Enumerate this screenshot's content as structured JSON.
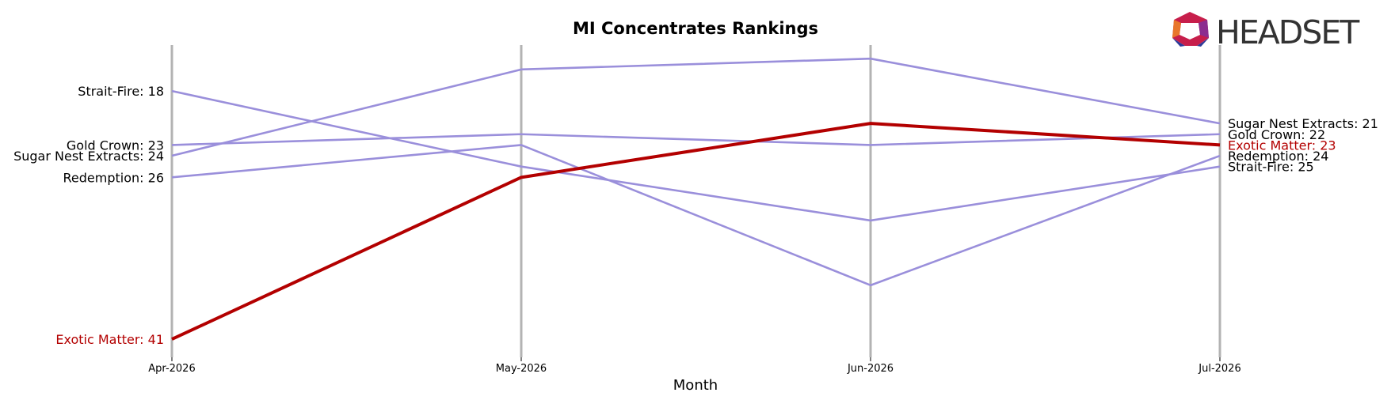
{
  "chart_data": {
    "type": "line",
    "title": "MI Concentrates Rankings",
    "xlabel": "Month",
    "ylabel": "",
    "categories": [
      "Apr-2026",
      "May-2026",
      "Jun-2026",
      "Jul-2026"
    ],
    "y_inverted": true,
    "ylim": [
      42,
      15
    ],
    "grid": false,
    "highlight_color": "#b30000",
    "series_color": "#9a8fdb",
    "vline_color": "#b3b3b3",
    "series": [
      {
        "name": "Strait-Fire",
        "values": [
          18,
          25,
          30,
          25
        ],
        "highlight": false
      },
      {
        "name": "Gold Crown",
        "values": [
          23,
          22,
          23,
          22
        ],
        "highlight": false
      },
      {
        "name": "Sugar Nest Extracts",
        "values": [
          24,
          16,
          15,
          21
        ],
        "highlight": false
      },
      {
        "name": "Redemption",
        "values": [
          26,
          23,
          36,
          24
        ],
        "highlight": false
      },
      {
        "name": "Exotic Matter",
        "values": [
          41,
          26,
          21,
          23
        ],
        "highlight": true
      }
    ],
    "start_labels": [
      {
        "text": "Strait-Fire: 18",
        "highlight": false
      },
      {
        "text": "Gold Crown: 23",
        "highlight": false
      },
      {
        "text": "Sugar Nest Extracts: 24",
        "highlight": false
      },
      {
        "text": "Redemption: 26",
        "highlight": false
      },
      {
        "text": "Exotic Matter: 41",
        "highlight": true
      }
    ],
    "end_labels": [
      {
        "text": "Sugar Nest Extracts: 21",
        "highlight": false
      },
      {
        "text": "Gold Crown: 22",
        "highlight": false
      },
      {
        "text": "Exotic Matter: 23",
        "highlight": true
      },
      {
        "text": "Redemption: 24",
        "highlight": false
      },
      {
        "text": "Strait-Fire: 25",
        "highlight": false
      }
    ]
  },
  "logo": {
    "text": "HEADSET"
  }
}
